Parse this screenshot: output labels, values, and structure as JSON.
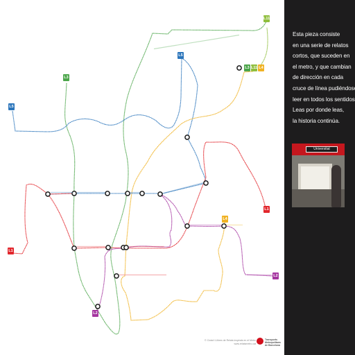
{
  "panel": {
    "lines": [
      "Esta pieza consiste",
      "en una serie de relatos",
      "cortos, que suceden en",
      "el metro, y que cambian",
      "de dirección en cada",
      "cruce de línea pudiéndose",
      "leer en todos los sentidos.",
      "Leas por donde leas,",
      "la historia continúa."
    ],
    "photo_station_name": "Universitat"
  },
  "lines": [
    {
      "id": "L1",
      "color": "#e2262c"
    },
    {
      "id": "L2",
      "color": "#a536a0"
    },
    {
      "id": "L3",
      "color": "#4ba54a"
    },
    {
      "id": "L4",
      "color": "#f0b223"
    },
    {
      "id": "L5",
      "color": "#2b75bb"
    },
    {
      "id": "L11",
      "color": "#8fbe3d"
    }
  ],
  "badges": [
    {
      "label": "L3",
      "color": "#4ba54a"
    },
    {
      "label": "L3",
      "color": "#4ba54a"
    },
    {
      "label": "L5",
      "color": "#2b75bb"
    },
    {
      "label": "L5",
      "color": "#2b75bb"
    },
    {
      "label": "L3",
      "color": "#4ba54a"
    },
    {
      "label": "L11",
      "color": "#8fbe3d"
    },
    {
      "label": "L4",
      "color": "#f0b223"
    },
    {
      "label": "L1",
      "color": "#e2262c"
    },
    {
      "label": "L1",
      "color": "#e2262c"
    },
    {
      "label": "L4",
      "color": "#f0b223"
    },
    {
      "label": "L2",
      "color": "#a536a0"
    },
    {
      "label": "L2",
      "color": "#a536a0"
    },
    {
      "label": "L11",
      "color": "#8fbe3d"
    }
  ],
  "footer": {
    "credit_line1": "© Ciutat i Llibres de Relats inspirats en el Metro",
    "credit_line2": "www.relatsmetro.cat",
    "brand_line1": "Transports Metropolitans",
    "brand_line2": "de Barcelona"
  },
  "icons": {
    "map": "metro-map-icon",
    "interchange": "interchange-icon",
    "logo": "tmb-logo-icon"
  }
}
